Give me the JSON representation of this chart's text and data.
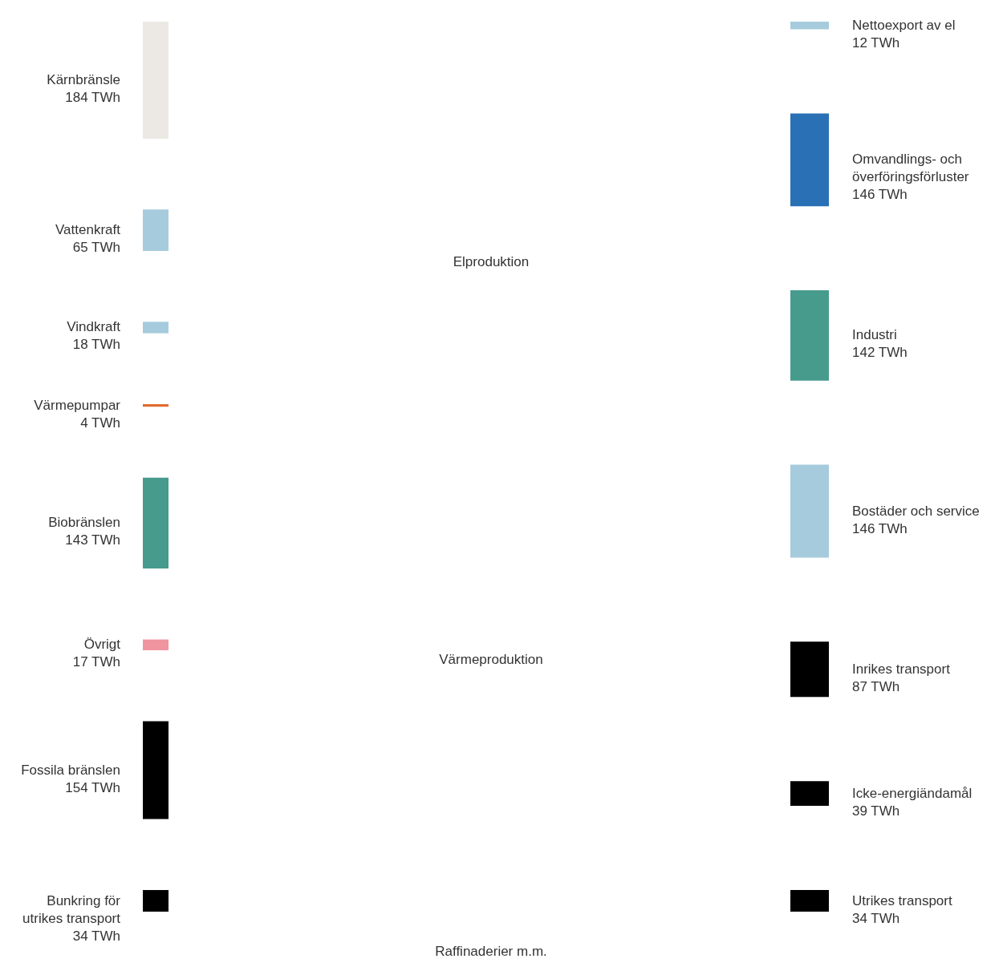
{
  "chart_data": {
    "type": "other",
    "categories": [
      "Kärnbränsle",
      "Vattenkraft",
      "Vindkraft",
      "Värmepumpar",
      "Biobränslen",
      "Övrigt",
      "Fossila bränslen",
      "Bunkring för utrikes transport",
      "Nettoexport av el",
      "Omvandlings- och överföringsförluster",
      "Industri",
      "Bostäder och service",
      "Inrikes transport",
      "Icke-energiändamål",
      "Utrikes transport"
    ],
    "series": [
      {
        "values": [
          184,
          65,
          18,
          4,
          143,
          17,
          154,
          34,
          null,
          null,
          null,
          null,
          null,
          null,
          null
        ],
        "colors": [
          "#ece9e4",
          "#a6cbdd",
          "#a6cbdd",
          "#e06a2e",
          "#469b8d",
          "#f0949f",
          "#000000",
          "#000000",
          null,
          null,
          null,
          null,
          null,
          null,
          null
        ],
        "value_labels": [
          "184 TWh",
          "65 TWh",
          "18 TWh",
          "4 TWh",
          "143 TWh",
          "17 TWh",
          "154 TWh",
          "34 TWh",
          null,
          null,
          null,
          null,
          null,
          null,
          null
        ]
      },
      {
        "values": [
          null,
          null,
          null,
          null,
          null,
          null,
          null,
          null,
          12,
          146,
          142,
          146,
          87,
          39,
          34
        ],
        "colors": [
          null,
          null,
          null,
          null,
          null,
          null,
          null,
          null,
          "#a6cbdd",
          "#2a70b5",
          "#469b8d",
          "#a6cbdd",
          "#000000",
          "#000000",
          "#000000"
        ],
        "value_labels": [
          null,
          null,
          null,
          null,
          null,
          null,
          null,
          null,
          "12 TWh",
          "146 TWh",
          "142 TWh",
          "146 TWh",
          "87 TWh",
          "39 TWh",
          "34 TWh"
        ]
      }
    ],
    "annotations": [
      "Elproduktion",
      "Värmeproduktion",
      "Raffinaderier m.m."
    ]
  }
}
